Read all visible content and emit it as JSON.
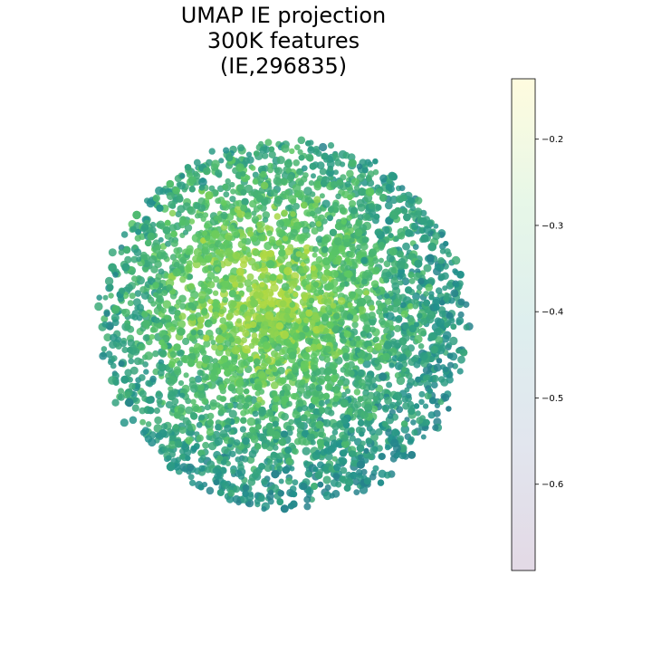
{
  "chart_data": {
    "type": "scatter",
    "title_lines": [
      "UMAP IE projection",
      "300K features",
      "(IE,296835)"
    ],
    "axes_visible": false,
    "grid": false,
    "colormap": "viridis",
    "colorbar": {
      "range": [
        -0.7,
        -0.13
      ],
      "ticks": [
        -0.2,
        -0.3,
        -0.4,
        -0.5,
        -0.6
      ],
      "tick_labels": [
        "−0.2",
        "−0.3",
        "−0.4",
        "−0.5",
        "−0.6"
      ],
      "alpha": 0.15
    },
    "point_cloud": {
      "shape": "roughly circular cloud of many overlapping points",
      "value_range_shown": [
        -0.45,
        -0.2
      ],
      "x_range": [
        -1,
        1
      ],
      "y_range": [
        -1,
        1
      ]
    }
  }
}
